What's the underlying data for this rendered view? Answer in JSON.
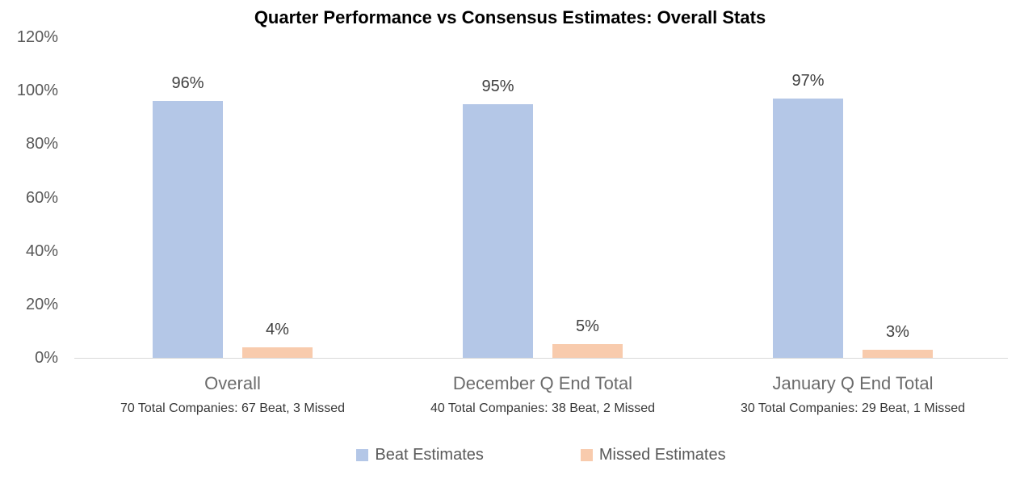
{
  "chart_data": {
    "type": "bar",
    "title": "Quarter Performance vs Consensus Estimates: Overall Stats",
    "categories": [
      "Overall",
      "December Q End Total",
      "January Q End Total"
    ],
    "category_subtitles": [
      "70 Total Companies: 67 Beat, 3 Missed",
      "40 Total Companies: 38 Beat, 2 Missed",
      "30 Total Companies: 29 Beat, 1 Missed"
    ],
    "series": [
      {
        "name": "Beat Estimates",
        "values": [
          96,
          95,
          97
        ],
        "color": "#b4c7e7"
      },
      {
        "name": "Missed Estimates",
        "values": [
          4,
          5,
          3
        ],
        "color": "#f8cbad"
      }
    ],
    "data_labels": [
      [
        "96%",
        "4%"
      ],
      [
        "95%",
        "5%"
      ],
      [
        "97%",
        "3%"
      ]
    ],
    "ylabel": "",
    "xlabel": "",
    "ylim": [
      0,
      120
    ],
    "yticks": [
      0,
      20,
      40,
      60,
      80,
      100,
      120
    ],
    "ytick_labels": [
      "0%",
      "20%",
      "40%",
      "60%",
      "80%",
      "100%",
      "120%"
    ],
    "grid": false,
    "legend_position": "bottom",
    "axis_line_color": "#d9d9d9"
  }
}
